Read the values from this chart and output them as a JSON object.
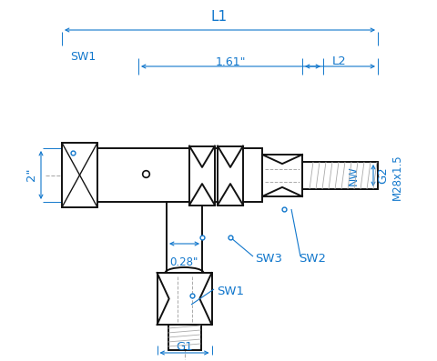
{
  "bg_color": "#ffffff",
  "dim_color": "#1177cc",
  "part_color": "#111111",
  "dash_color": "#aaaaaa",
  "label_color": "#1177cc",
  "figsize": [
    4.8,
    3.97
  ],
  "dpi": 100,
  "labels": {
    "L1": "L1",
    "L2": "L2",
    "SW1_top": "SW1",
    "dim_161": "1.61\"",
    "dim_028": "0.28\"",
    "dim_2": "2\"",
    "SW3": "SW3",
    "SW2": "SW2",
    "SW1_bot": "SW1",
    "G1": "G1",
    "G2": "G2",
    "NW": "NW",
    "M28": "M28x1.5"
  }
}
